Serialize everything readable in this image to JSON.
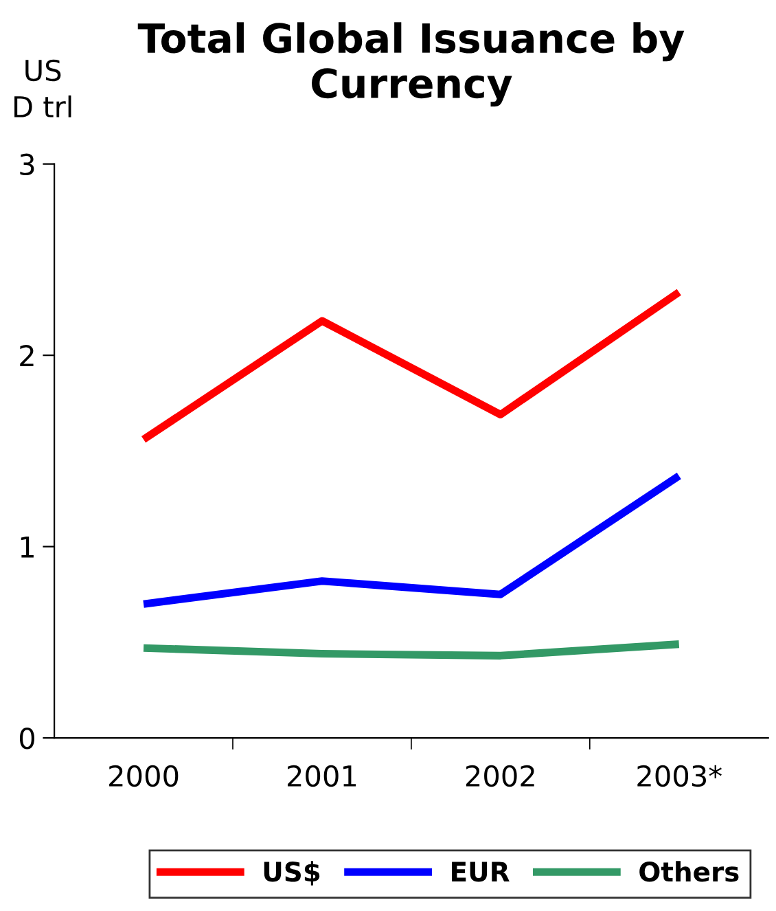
{
  "chart_data": {
    "type": "line",
    "title": "Total Global Issuance by Currency",
    "ylabel": "US\nD trl",
    "categories": [
      "2000",
      "2001",
      "2002",
      "2003*"
    ],
    "series": [
      {
        "name": "US$",
        "color": "#ff0000",
        "values": [
          1.56,
          2.18,
          1.69,
          2.33
        ]
      },
      {
        "name": "EUR",
        "color": "#0000ff",
        "values": [
          0.7,
          0.82,
          0.75,
          1.37
        ]
      },
      {
        "name": "Others",
        "color": "#339966",
        "values": [
          0.47,
          0.44,
          0.43,
          0.49
        ]
      }
    ],
    "ylim": [
      0,
      3
    ],
    "yticks": [
      0,
      1,
      2,
      3
    ],
    "grid": false,
    "legend": "bottom",
    "marker": "none",
    "line_style": "solid"
  }
}
